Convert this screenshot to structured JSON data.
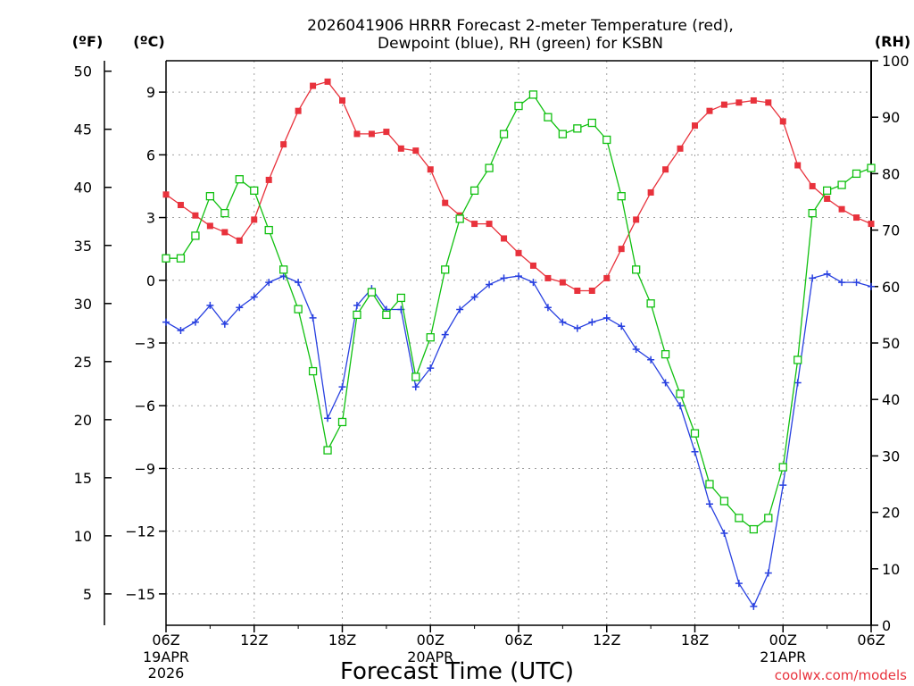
{
  "chart_data": {
    "type": "line",
    "title": [
      "2026041906 HRRR Forecast 2-meter Temperature (red),",
      "Dewpoint (blue), RH (green) for KSBN"
    ],
    "xlabel": "Forecast Time (UTC)",
    "credit": "coolwx.com/models",
    "units": {
      "fahrenheit": "(ºF)",
      "celsius": "(ºC)",
      "rh": "(RH)"
    },
    "x_ticks": [
      {
        "hour": 0,
        "label": "06Z",
        "sub": [
          "19APR",
          "2026"
        ]
      },
      {
        "hour": 6,
        "label": "12Z",
        "sub": []
      },
      {
        "hour": 12,
        "label": "18Z",
        "sub": []
      },
      {
        "hour": 18,
        "label": "00Z",
        "sub": [
          "20APR"
        ]
      },
      {
        "hour": 24,
        "label": "06Z",
        "sub": []
      },
      {
        "hour": 30,
        "label": "12Z",
        "sub": []
      },
      {
        "hour": 36,
        "label": "18Z",
        "sub": []
      },
      {
        "hour": 42,
        "label": "00Z",
        "sub": [
          "21APR"
        ]
      },
      {
        "hour": 48,
        "label": "06Z",
        "sub": []
      }
    ],
    "xlim": [
      0,
      48
    ],
    "ylim_celsius": [
      -16.5,
      10.5
    ],
    "yticks_celsius": [
      "9",
      "6",
      "3",
      "0",
      "−3",
      "−6",
      "−9",
      "−12",
      "−15"
    ],
    "yticks_fahrenheit": [
      "50",
      "45",
      "40",
      "35",
      "30",
      "25",
      "20",
      "15",
      "10",
      "5"
    ],
    "ylim_rh": [
      0,
      100
    ],
    "yticks_rh": [
      "0",
      "10",
      "20",
      "30",
      "40",
      "50",
      "60",
      "70",
      "80",
      "90",
      "100"
    ],
    "grid": true,
    "colors": {
      "temperature": "#e8323c",
      "dewpoint": "#2840e0",
      "rh": "#10c010",
      "grid": "#a0a0a0"
    },
    "series": [
      {
        "name": "2-meter Temperature",
        "unit": "C",
        "marker": "filled-square",
        "values": [
          4.1,
          3.6,
          3.1,
          2.6,
          2.3,
          1.9,
          2.9,
          4.8,
          6.5,
          8.1,
          9.3,
          9.5,
          8.6,
          7.0,
          7.0,
          7.1,
          6.3,
          6.2,
          5.3,
          3.7,
          3.1,
          2.7,
          2.7,
          2.0,
          1.3,
          0.7,
          0.1,
          -0.1,
          -0.5,
          -0.5,
          0.1,
          1.5,
          2.9,
          4.2,
          5.3,
          6.3,
          7.4,
          8.1,
          8.4,
          8.5,
          8.6,
          8.5,
          7.6,
          5.5,
          4.5,
          3.9,
          3.4,
          3.0,
          2.7
        ]
      },
      {
        "name": "Dewpoint",
        "unit": "C",
        "marker": "plus",
        "values": [
          -2.0,
          -2.4,
          -2.0,
          -1.2,
          -2.1,
          -1.3,
          -0.8,
          -0.1,
          0.2,
          -0.1,
          -1.8,
          -6.6,
          -5.1,
          -1.2,
          -0.4,
          -1.4,
          -1.4,
          -5.1,
          -4.2,
          -2.6,
          -1.4,
          -0.8,
          -0.2,
          0.1,
          0.2,
          -0.1,
          -1.3,
          -2.0,
          -2.3,
          -2.0,
          -1.8,
          -2.2,
          -3.3,
          -3.8,
          -4.9,
          -6.0,
          -8.2,
          -10.7,
          -12.1,
          -14.5,
          -15.6,
          -14.0,
          -9.8,
          -4.9,
          0.1,
          0.3,
          -0.1,
          -0.1,
          -0.3
        ]
      },
      {
        "name": "RH",
        "unit": "%",
        "marker": "open-square",
        "values": [
          65,
          65,
          69,
          76,
          73,
          79,
          77,
          70,
          63,
          56,
          45,
          31,
          36,
          55,
          59,
          55,
          58,
          44,
          51,
          63,
          72,
          77,
          81,
          87,
          92,
          94,
          90,
          87,
          88,
          89,
          86,
          76,
          63,
          57,
          48,
          41,
          34,
          25,
          22,
          19,
          17,
          19,
          28,
          47,
          73,
          77,
          78,
          80,
          81
        ]
      }
    ]
  }
}
